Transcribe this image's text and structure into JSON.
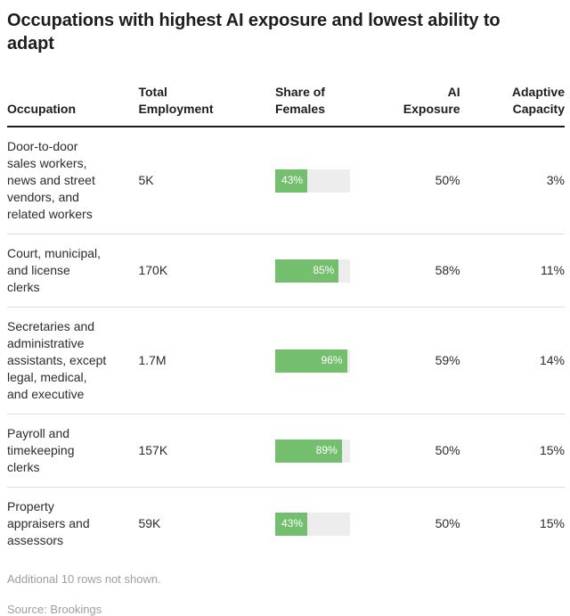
{
  "title": "Occupations with highest AI exposure and lowest ability to\nadapt",
  "colors": {
    "bar_fill_green": "#74bf6e",
    "bar_track_gray": "#ededed",
    "header_rule": "#1a1a1a",
    "row_rule": "#dedede",
    "muted_text": "#9e9e9e"
  },
  "table": {
    "header": {
      "occupation": "Occupation",
      "total_employment": "Total\nEmployment",
      "share_of_females": "Share of\nFemales",
      "ai_exposure": "AI\nExposure",
      "adaptive_capacity": "Adaptive\nCapacity"
    },
    "rows": [
      {
        "occupation": "Door-to-door\nsales workers,\nnews and street\nvendors, and\nrelated workers",
        "total_employment": "5K",
        "share_pct": 43,
        "share_label": "43%",
        "ai_exposure": "50%",
        "adaptive_capacity": "3%"
      },
      {
        "occupation": "Court, municipal,\nand license\nclerks",
        "total_employment": "170K",
        "share_pct": 85,
        "share_label": "85%",
        "ai_exposure": "58%",
        "adaptive_capacity": "11%"
      },
      {
        "occupation": "Secretaries and\nadministrative\nassistants, except\nlegal, medical,\nand executive",
        "total_employment": "1.7M",
        "share_pct": 96,
        "share_label": "96%",
        "ai_exposure": "59%",
        "adaptive_capacity": "14%"
      },
      {
        "occupation": "Payroll and\ntimekeeping\nclerks",
        "total_employment": "157K",
        "share_pct": 89,
        "share_label": "89%",
        "ai_exposure": "50%",
        "adaptive_capacity": "15%"
      },
      {
        "occupation": "Property\nappraisers and\nassessors",
        "total_employment": "59K",
        "share_pct": 43,
        "share_label": "43%",
        "ai_exposure": "50%",
        "adaptive_capacity": "15%"
      }
    ]
  },
  "footnote": "Additional 10 rows not shown.",
  "source": "Source: Brookings",
  "chart_data": {
    "type": "table",
    "title": "Occupations with highest AI exposure and lowest ability to adapt",
    "columns": [
      "Occupation",
      "Total Employment",
      "Share of Females",
      "AI Exposure",
      "Adaptive Capacity"
    ],
    "rows": [
      [
        "Door-to-door sales workers, news and street vendors, and related workers",
        "5K",
        "43%",
        "50%",
        "3%"
      ],
      [
        "Court, municipal, and license clerks",
        "170K",
        "85%",
        "58%",
        "11%"
      ],
      [
        "Secretaries and administrative assistants, except legal, medical, and executive",
        "1.7M",
        "96%",
        "59%",
        "14%"
      ],
      [
        "Payroll and timekeeping clerks",
        "157K",
        "89%",
        "50%",
        "15%"
      ],
      [
        "Property appraisers and assessors",
        "59K",
        "43%",
        "50%",
        "15%"
      ]
    ],
    "bar_column": "Share of Females",
    "bar_values_pct": [
      43,
      85,
      96,
      89,
      43
    ],
    "bar_color": "#74bf6e",
    "notes": [
      "Additional 10 rows not shown.",
      "Source: Brookings"
    ]
  }
}
